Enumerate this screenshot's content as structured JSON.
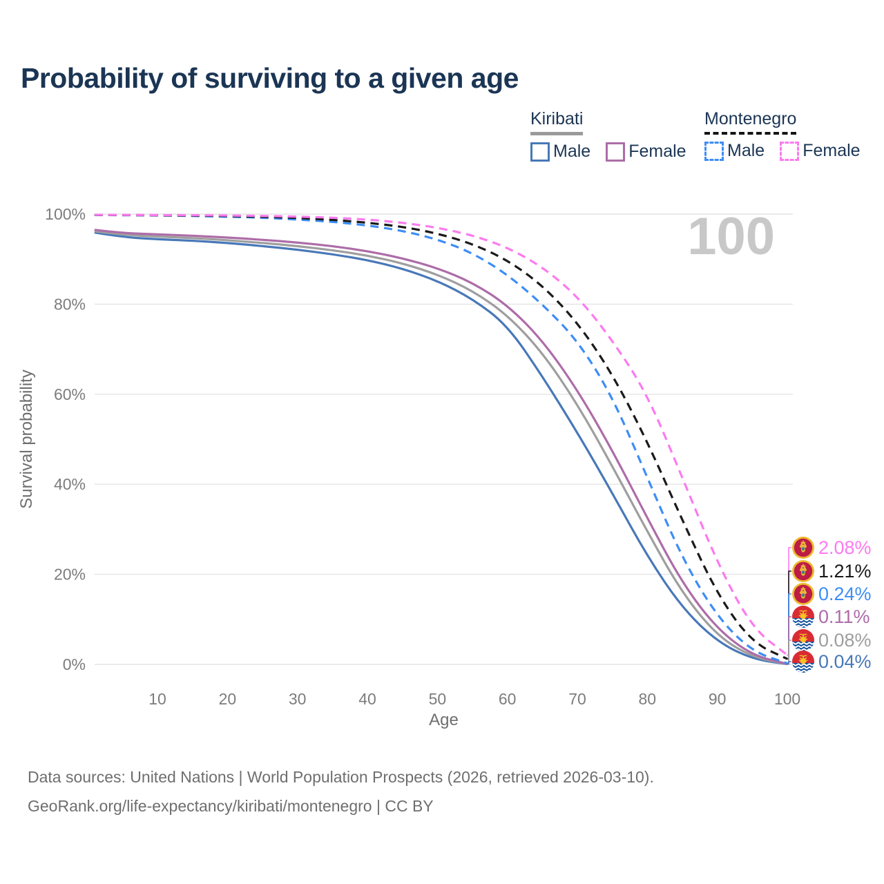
{
  "title": "Probability of surviving to a given age",
  "watermark_age_counter": "100",
  "legend": {
    "groups": [
      {
        "country": "Kiribati",
        "line_style": "solid",
        "underline_color": "#9a9a9a",
        "items": [
          {
            "label": "Male",
            "color": "#4878b8"
          },
          {
            "label": "Female",
            "color": "#ad6ca8"
          }
        ]
      },
      {
        "country": "Montenegro",
        "line_style": "dashed",
        "underline_color": "#151515",
        "items": [
          {
            "label": "Male",
            "color": "#3d8df5"
          },
          {
            "label": "Female",
            "color": "#fb7bef"
          }
        ]
      }
    ]
  },
  "chart_data": {
    "type": "line",
    "title": "Probability of surviving to a given age",
    "xlabel": "Age",
    "ylabel": "Survival probability",
    "xlim": [
      0,
      100
    ],
    "ylim": [
      0,
      100
    ],
    "grid": "horizontal-only",
    "x_ticks": [
      10,
      20,
      30,
      40,
      50,
      60,
      70,
      80,
      90,
      100
    ],
    "y_ticks": [
      0,
      20,
      40,
      60,
      80,
      100
    ],
    "y_tick_labels": [
      "0%",
      "20%",
      "40%",
      "60%",
      "80%",
      "100%"
    ],
    "x": [
      1,
      5,
      10,
      15,
      20,
      25,
      30,
      35,
      40,
      45,
      50,
      55,
      60,
      65,
      70,
      75,
      80,
      85,
      90,
      95,
      100
    ],
    "series": [
      {
        "id": "kiribati-male",
        "country": "Kiribati",
        "sex": "Male",
        "style": "solid",
        "color": "#4878b8",
        "flag": "kiribati",
        "end_label": "0.04%",
        "values": [
          95.9,
          94.9,
          94.4,
          94.1,
          93.6,
          92.9,
          92.1,
          91.1,
          89.8,
          87.9,
          85.2,
          81.2,
          75.3,
          64.0,
          51.5,
          38.0,
          24.0,
          12.5,
          5.0,
          1.2,
          0.04
        ]
      },
      {
        "id": "kiribati-total",
        "country": "Kiribati",
        "sex": "Total",
        "style": "solid",
        "color": "#9e9e9e",
        "flag": "kiribati",
        "end_label": "0.08%",
        "values": [
          96.2,
          95.4,
          95.0,
          94.7,
          94.2,
          93.6,
          92.9,
          92.0,
          90.8,
          89.1,
          86.6,
          83.0,
          77.6,
          69.3,
          57.8,
          44.0,
          29.5,
          15.8,
          6.3,
          1.6,
          0.08
        ]
      },
      {
        "id": "kiribati-female",
        "country": "Kiribati",
        "sex": "Female",
        "style": "solid",
        "color": "#ad6ca8",
        "flag": "kiribati",
        "end_label": "0.11%",
        "values": [
          96.5,
          95.8,
          95.5,
          95.2,
          94.8,
          94.3,
          93.7,
          92.9,
          91.8,
          90.2,
          88.0,
          84.8,
          79.8,
          72.0,
          61.0,
          47.5,
          32.5,
          18.0,
          7.8,
          2.0,
          0.11
        ]
      },
      {
        "id": "montenegro-male",
        "country": "Montenegro",
        "sex": "Male",
        "style": "dashed",
        "color": "#3d8df5",
        "flag": "montenegro",
        "end_label": "0.24%",
        "values": [
          99.8,
          99.75,
          99.7,
          99.6,
          99.4,
          99.2,
          98.8,
          98.3,
          97.5,
          96.3,
          94.4,
          91.4,
          86.6,
          80.0,
          72.0,
          59.5,
          41.5,
          23.5,
          10.5,
          2.8,
          0.24
        ]
      },
      {
        "id": "montenegro-total",
        "country": "Montenegro",
        "sex": "Total",
        "style": "dashed",
        "color": "#1a1a1a",
        "flag": "montenegro",
        "end_label": "1.21%",
        "values": [
          99.82,
          99.78,
          99.74,
          99.68,
          99.58,
          99.42,
          99.15,
          98.75,
          98.1,
          97.2,
          95.7,
          93.4,
          89.8,
          84.2,
          76.0,
          64.5,
          49.5,
          32.0,
          15.5,
          4.8,
          1.21
        ]
      },
      {
        "id": "montenegro-female",
        "country": "Montenegro",
        "sex": "Female",
        "style": "dashed",
        "color": "#fb7bef",
        "flag": "montenegro",
        "end_label": "2.08%",
        "values": [
          99.85,
          99.82,
          99.79,
          99.75,
          99.7,
          99.6,
          99.45,
          99.2,
          98.8,
          98.1,
          97.0,
          95.3,
          92.6,
          88.3,
          81.8,
          72.0,
          60.0,
          41.5,
          22.5,
          8.0,
          2.08
        ]
      }
    ],
    "colors": {
      "grid": "#e4e4e4",
      "tick_label": "#7c7c7c",
      "axis_title": "#6e6e6e",
      "watermark": "#c8c8c8"
    }
  },
  "footer": {
    "line1": "Data sources: United Nations | World Population Prospects (2026, retrieved 2026-03-10).",
    "line2": "GeoRank.org/life-expectancy/kiribati/montenegro | CC BY"
  }
}
